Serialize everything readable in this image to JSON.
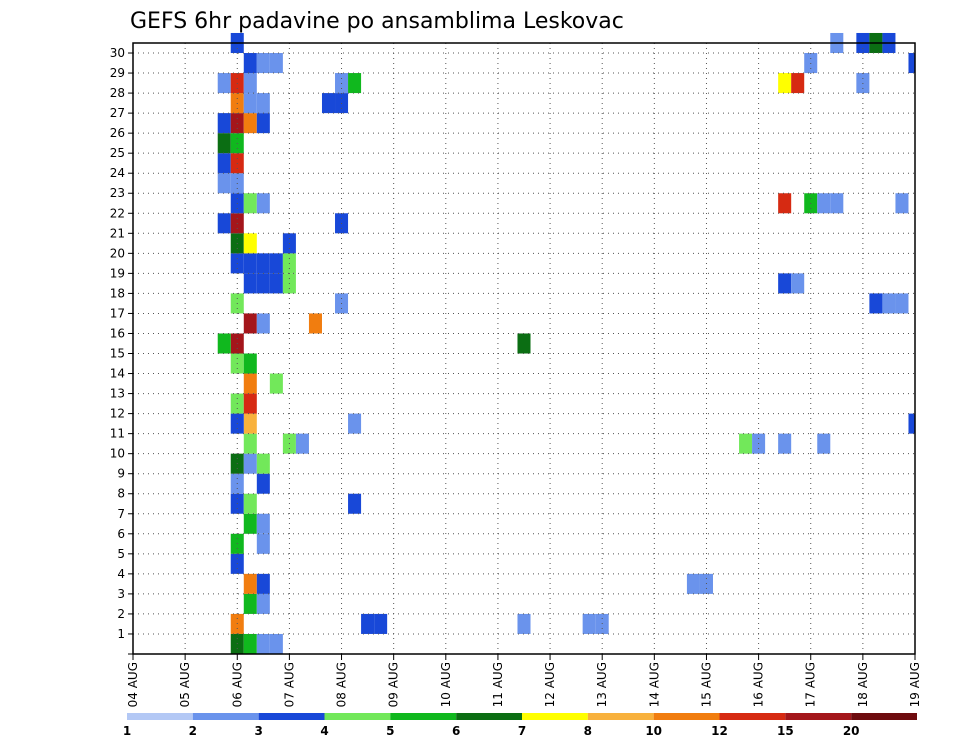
{
  "chart_data": {
    "type": "heatmap",
    "title": "GEFS 6hr padavine po ansamblima Leskovac",
    "xlabel": "",
    "ylabel": "",
    "x_ticks": [
      "04 AUG",
      "05 AUG",
      "06 AUG",
      "07 AUG",
      "08 AUG",
      "09 AUG",
      "10 AUG",
      "11 AUG",
      "12 AUG",
      "13 AUG",
      "14 AUG",
      "15 AUG",
      "16 AUG",
      "17 AUG",
      "18 AUG",
      "19 AUG"
    ],
    "y_ticks": [
      "0",
      "1",
      "2",
      "3",
      "4",
      "5",
      "6",
      "7",
      "8",
      "9",
      "10",
      "11",
      "12",
      "13",
      "14",
      "15",
      "16",
      "17",
      "18",
      "19",
      "20",
      "21",
      "22",
      "23",
      "24",
      "25",
      "26",
      "27",
      "28",
      "29",
      "30"
    ],
    "y_range": [
      0,
      30
    ],
    "x_steps_per_day": 4,
    "x_range_steps": [
      0,
      60
    ],
    "grid": true,
    "legend_position": "bottom",
    "colorbar": {
      "labels": [
        "1",
        "2",
        "3",
        "4",
        "5",
        "6",
        "7",
        "8",
        "10",
        "12",
        "15",
        "20"
      ],
      "colors": [
        "#b3c8f5",
        "#6a93ec",
        "#1848d8",
        "#72e85a",
        "#10b81e",
        "#0b6e13",
        "#ffff00",
        "#f8b13c",
        "#f17d0f",
        "#d62a12",
        "#a4161b",
        "#6e0b0e"
      ]
    },
    "cells": [
      [
        8,
        0,
        5
      ],
      [
        9,
        0,
        4
      ],
      [
        10,
        0,
        1
      ],
      [
        11,
        0,
        1
      ],
      [
        8,
        1,
        8
      ],
      [
        18,
        1,
        2
      ],
      [
        19,
        1,
        2
      ],
      [
        30,
        1,
        1
      ],
      [
        35,
        1,
        1
      ],
      [
        36,
        1,
        1
      ],
      [
        9,
        2,
        4
      ],
      [
        10,
        2,
        1
      ],
      [
        9,
        3,
        8
      ],
      [
        10,
        3,
        2
      ],
      [
        43,
        3,
        1
      ],
      [
        44,
        3,
        1
      ],
      [
        8,
        4,
        2
      ],
      [
        8,
        5,
        4
      ],
      [
        10,
        5,
        1
      ],
      [
        9,
        6,
        4
      ],
      [
        10,
        6,
        1
      ],
      [
        8,
        7,
        2
      ],
      [
        9,
        7,
        3
      ],
      [
        17,
        7,
        2
      ],
      [
        8,
        8,
        1
      ],
      [
        10,
        8,
        2
      ],
      [
        8,
        9,
        5
      ],
      [
        9,
        9,
        1
      ],
      [
        10,
        9,
        3
      ],
      [
        9,
        10,
        3
      ],
      [
        12,
        10,
        3
      ],
      [
        13,
        10,
        1
      ],
      [
        47,
        10,
        3
      ],
      [
        48,
        10,
        1
      ],
      [
        50,
        10,
        1
      ],
      [
        53,
        10,
        1
      ],
      [
        9,
        11,
        7
      ],
      [
        8,
        11,
        2
      ],
      [
        17,
        11,
        1
      ],
      [
        60,
        11,
        2
      ],
      [
        8,
        12,
        3
      ],
      [
        9,
        12,
        9
      ],
      [
        9,
        13,
        8
      ],
      [
        11,
        13,
        3
      ],
      [
        8,
        14,
        3
      ],
      [
        9,
        14,
        4
      ],
      [
        8,
        15,
        10
      ],
      [
        7,
        15,
        4
      ],
      [
        30,
        15,
        5
      ],
      [
        9,
        16,
        10
      ],
      [
        10,
        16,
        1
      ],
      [
        14,
        16,
        8
      ],
      [
        8,
        17,
        3
      ],
      [
        16,
        17,
        1
      ],
      [
        57,
        17,
        2
      ],
      [
        58,
        17,
        1
      ],
      [
        59,
        17,
        1
      ],
      [
        9,
        18,
        2
      ],
      [
        10,
        18,
        2
      ],
      [
        11,
        18,
        2
      ],
      [
        12,
        18,
        3
      ],
      [
        50,
        18,
        2
      ],
      [
        51,
        18,
        1
      ],
      [
        8,
        19,
        2
      ],
      [
        9,
        19,
        2
      ],
      [
        10,
        19,
        2
      ],
      [
        11,
        19,
        2
      ],
      [
        12,
        19,
        3
      ],
      [
        8,
        20,
        5
      ],
      [
        9,
        20,
        6
      ],
      [
        12,
        20,
        2
      ],
      [
        7,
        21,
        2
      ],
      [
        8,
        21,
        10
      ],
      [
        16,
        21,
        2
      ],
      [
        8,
        22,
        2
      ],
      [
        9,
        22,
        3
      ],
      [
        10,
        22,
        1
      ],
      [
        50,
        22,
        9
      ],
      [
        52,
        22,
        4
      ],
      [
        53,
        22,
        1
      ],
      [
        54,
        22,
        1
      ],
      [
        59,
        22,
        1
      ],
      [
        7,
        23,
        1
      ],
      [
        8,
        23,
        1
      ],
      [
        7,
        24,
        2
      ],
      [
        8,
        24,
        9
      ],
      [
        7,
        25,
        5
      ],
      [
        8,
        25,
        4
      ],
      [
        7,
        26,
        2
      ],
      [
        8,
        26,
        10
      ],
      [
        9,
        26,
        8
      ],
      [
        10,
        26,
        2
      ],
      [
        8,
        27,
        8
      ],
      [
        9,
        27,
        1
      ],
      [
        10,
        27,
        1
      ],
      [
        15,
        27,
        2
      ],
      [
        16,
        27,
        2
      ],
      [
        7,
        28,
        1
      ],
      [
        8,
        28,
        9
      ],
      [
        9,
        28,
        1
      ],
      [
        16,
        28,
        1
      ],
      [
        17,
        28,
        4
      ],
      [
        50,
        28,
        6
      ],
      [
        51,
        28,
        9
      ],
      [
        56,
        28,
        1
      ],
      [
        9,
        29,
        2
      ],
      [
        10,
        29,
        1
      ],
      [
        11,
        29,
        1
      ],
      [
        52,
        29,
        1
      ],
      [
        60,
        29,
        2
      ],
      [
        8,
        30,
        2
      ],
      [
        54,
        30,
        1
      ],
      [
        56,
        30,
        2
      ],
      [
        57,
        30,
        5
      ],
      [
        58,
        30,
        2
      ]
    ]
  }
}
